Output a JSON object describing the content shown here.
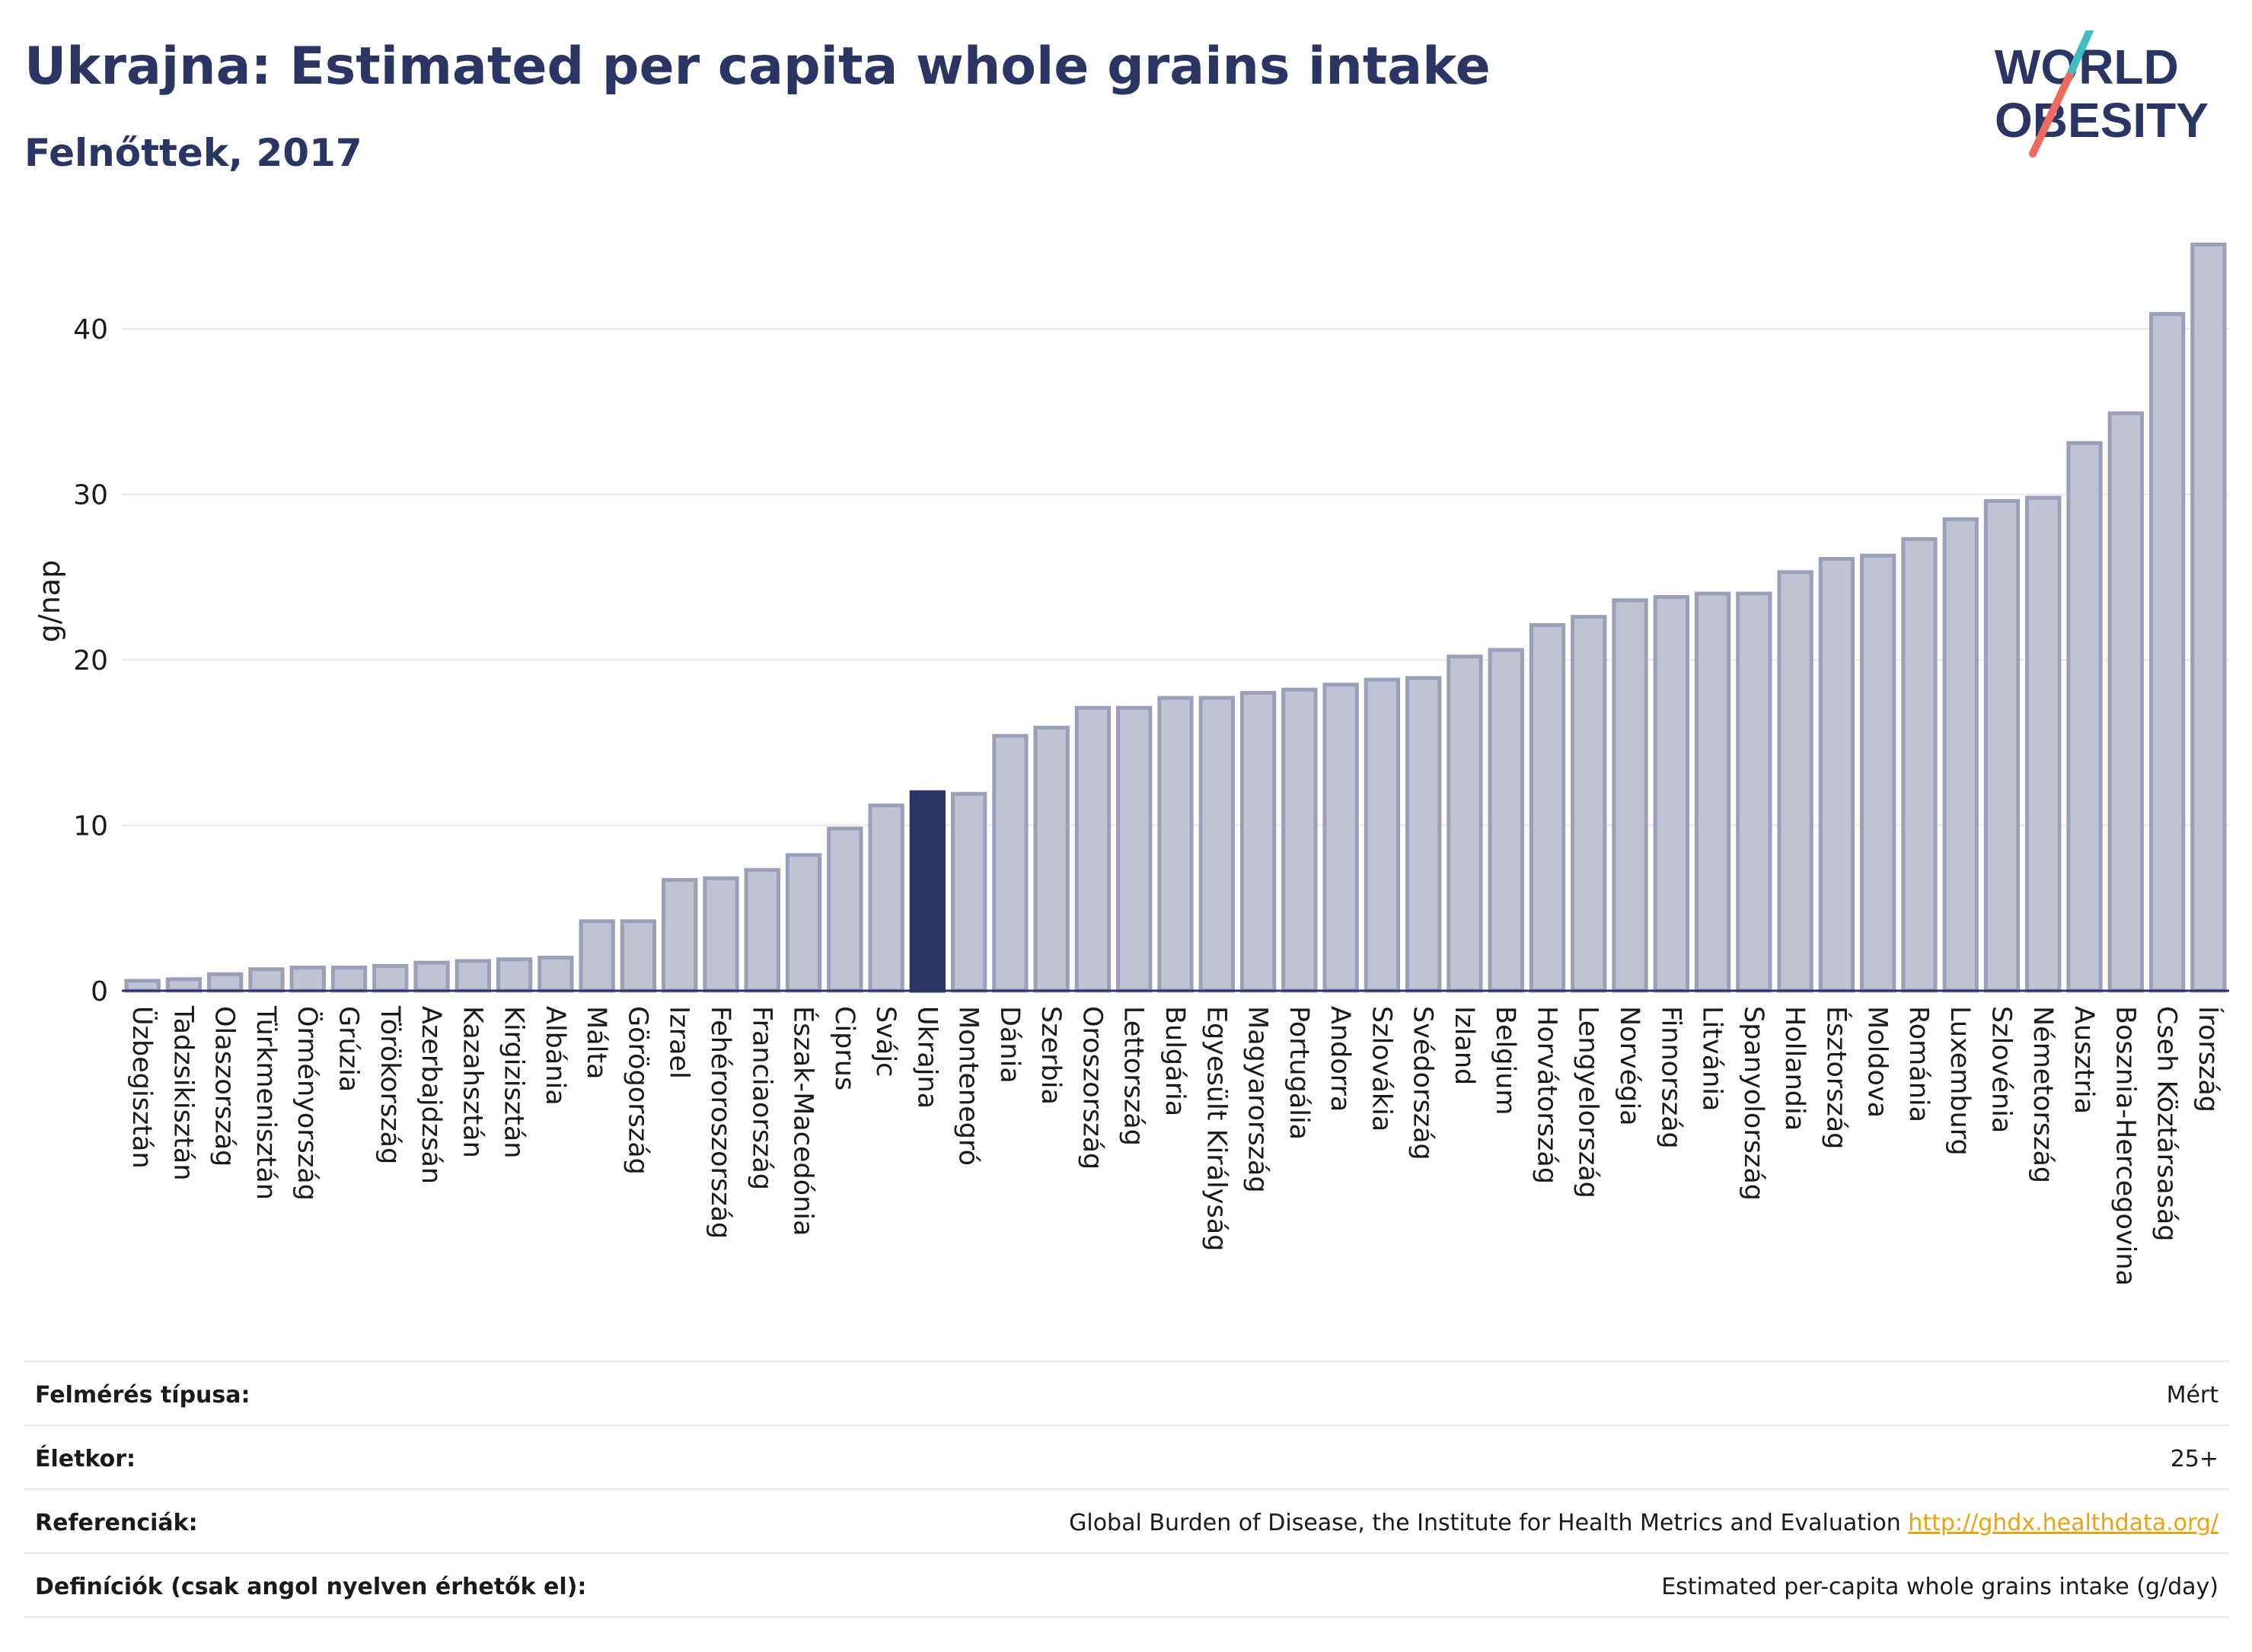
{
  "header": {
    "title": "Ukrajna: Estimated per capita whole grains intake",
    "subtitle": "Felnőttek, 2017"
  },
  "logo": {
    "line1": "WORLD",
    "line2": "OBESITY",
    "accent_teal": "#3fbfc4",
    "accent_coral": "#ec6b5e"
  },
  "colors": {
    "bar": "#bfc3d3",
    "bar_edge": "#9aa0b8",
    "highlight": "#2a3563",
    "grid": "#e6e8ee"
  },
  "chart_data": {
    "type": "bar",
    "title": "Ukrajna: Estimated per capita whole grains intake",
    "subtitle": "Felnőttek, 2017",
    "ylabel": "g/nap",
    "ylim": [
      0,
      47
    ],
    "yticks": [
      0,
      10,
      20,
      30,
      40
    ],
    "grid": true,
    "highlight": "Ukrajna",
    "categories": [
      "Üzbegisztán",
      "Tadzsikisztán",
      "Olaszország",
      "Türkmenisztán",
      "Örményország",
      "Grúzia",
      "Törökország",
      "Azerbajdzsán",
      "Kazahsztán",
      "Kirgizisztán",
      "Albánia",
      "Málta",
      "Görögország",
      "Izrael",
      "Fehéroroszország",
      "Franciaország",
      "Észak-Macedónia",
      "Ciprus",
      "Svájc",
      "Ukrajna",
      "Montenegró",
      "Dánia",
      "Szerbia",
      "Oroszország",
      "Lettország",
      "Bulgária",
      "Egyesült Királyság",
      "Magyarország",
      "Portugália",
      "Andorra",
      "Szlovákia",
      "Svédország",
      "Izland",
      "Belgium",
      "Horvátország",
      "Lengyelország",
      "Norvégia",
      "Finnország",
      "Litvánia",
      "Spanyolország",
      "Hollandia",
      "Észtország",
      "Moldova",
      "Románia",
      "Luxemburg",
      "Szlovénia",
      "Németország",
      "Ausztria",
      "Bosznia-Hercegovina",
      "Cseh Köztársaság",
      "Írország"
    ],
    "values": [
      0.6,
      0.7,
      1.0,
      1.3,
      1.4,
      1.4,
      1.5,
      1.7,
      1.8,
      1.9,
      2.0,
      4.2,
      4.2,
      6.7,
      6.8,
      7.3,
      8.2,
      9.8,
      11.2,
      12.0,
      11.9,
      15.4,
      15.9,
      17.1,
      17.1,
      17.7,
      17.7,
      18.0,
      18.2,
      18.5,
      18.8,
      18.9,
      20.2,
      20.6,
      22.1,
      22.6,
      23.6,
      23.8,
      24.0,
      24.0,
      25.3,
      26.1,
      26.3,
      27.3,
      28.5,
      29.6,
      29.8,
      33.1,
      34.9,
      40.9,
      45.1
    ]
  },
  "meta": {
    "survey_label": "Felmérés típusa:",
    "survey_value": "Mért",
    "age_label": "Életkor:",
    "age_value": "25+",
    "ref_label": "Referenciák:",
    "ref_value": "Global Burden of Disease, the Institute for Health Metrics and Evaluation",
    "ref_link": "http://ghdx.healthdata.org/",
    "def_label": "Definíciók (csak angol nyelven érhetők el):",
    "def_value": "Estimated per-capita whole grains intake (g/day)"
  }
}
